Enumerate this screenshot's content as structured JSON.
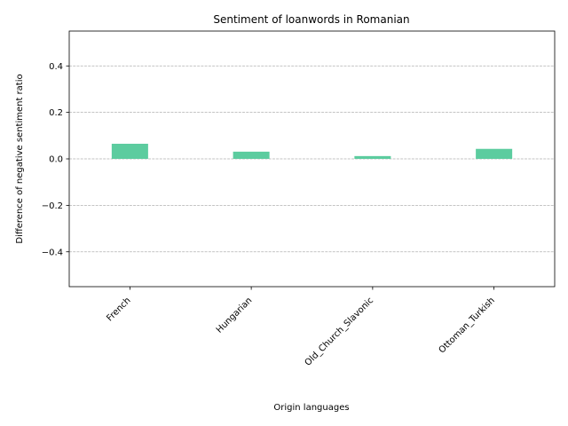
{
  "chart_data": {
    "type": "bar",
    "title": "Sentiment of loanwords in Romanian",
    "xlabel": "Origin languages",
    "ylabel": "Difference of negative sentiment ratio",
    "categories": [
      "French",
      "Hungarian",
      "Old_Church_Slavonic",
      "Ottoman_Turkish"
    ],
    "values": [
      0.065,
      0.031,
      0.012,
      0.043
    ],
    "ylim": [
      -0.55,
      0.55
    ],
    "yticks": [
      -0.4,
      -0.2,
      0.0,
      0.2,
      0.4
    ],
    "ytick_labels": [
      "−0.4",
      "−0.2",
      "0.0",
      "0.2",
      "0.4"
    ],
    "grid": "y-dashed",
    "bar_color": "#5ccc9f",
    "legend": "none"
  }
}
